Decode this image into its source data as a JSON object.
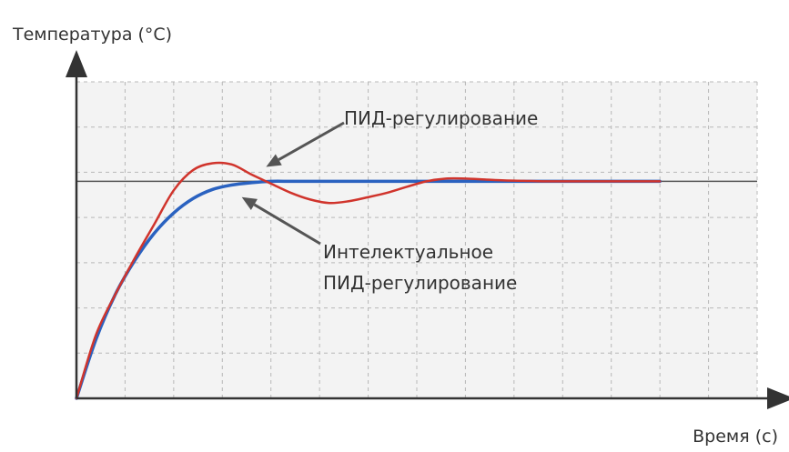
{
  "chart_data": {
    "type": "line",
    "ylabel": "Температура (°C)",
    "xlabel": "Время (с)",
    "xlim": [
      0,
      14
    ],
    "ylim": [
      0,
      7
    ],
    "grid": true,
    "tick_labels_shown": false,
    "setpoint": 4.8,
    "series": [
      {
        "name": "ПИД-регулирование",
        "color": "#d0342c",
        "x": [
          0,
          0.4,
          0.8,
          1.2,
          1.6,
          2.0,
          2.4,
          2.8,
          3.2,
          3.6,
          4.0,
          4.4,
          4.8,
          5.2,
          5.6,
          6.0,
          6.4,
          6.8,
          7.2,
          7.6,
          8.0,
          8.4,
          8.8,
          9.2,
          9.6,
          10.0,
          10.4,
          10.8,
          11.2,
          11.6,
          12.0
        ],
        "values": [
          0.0,
          1.4,
          2.3,
          3.1,
          3.85,
          4.6,
          5.05,
          5.2,
          5.17,
          4.95,
          4.75,
          4.55,
          4.4,
          4.32,
          4.36,
          4.45,
          4.55,
          4.68,
          4.8,
          4.86,
          4.86,
          4.84,
          4.82,
          4.81,
          4.8,
          4.8,
          4.8,
          4.8,
          4.8,
          4.8,
          4.8
        ]
      },
      {
        "name": "Интелектуальное ПИД-регулирование",
        "color": "#2a62c0",
        "x": [
          0,
          0.4,
          0.8,
          1.2,
          1.6,
          2.0,
          2.4,
          2.8,
          3.2,
          3.6,
          4.0,
          4.4,
          4.8,
          5.2,
          5.6,
          6.0,
          7.0,
          8.0,
          9.0,
          10.0,
          11.0,
          12.0
        ],
        "values": [
          0.0,
          1.3,
          2.3,
          3.05,
          3.65,
          4.1,
          4.42,
          4.62,
          4.72,
          4.77,
          4.8,
          4.8,
          4.8,
          4.8,
          4.8,
          4.8,
          4.8,
          4.8,
          4.8,
          4.8,
          4.8,
          4.8
        ]
      }
    ],
    "annotations": [
      {
        "text": "ПИД-регулирование",
        "points_to_series": 0,
        "target": {
          "x": 3.9,
          "y": 5.12
        }
      },
      {
        "text": "Интелектуальное ПИД-регулирование",
        "lines": [
          "Интелектуальное",
          "ПИД-регулирование"
        ],
        "points_to_series": 1,
        "target": {
          "x": 3.4,
          "y": 4.45
        }
      }
    ]
  }
}
